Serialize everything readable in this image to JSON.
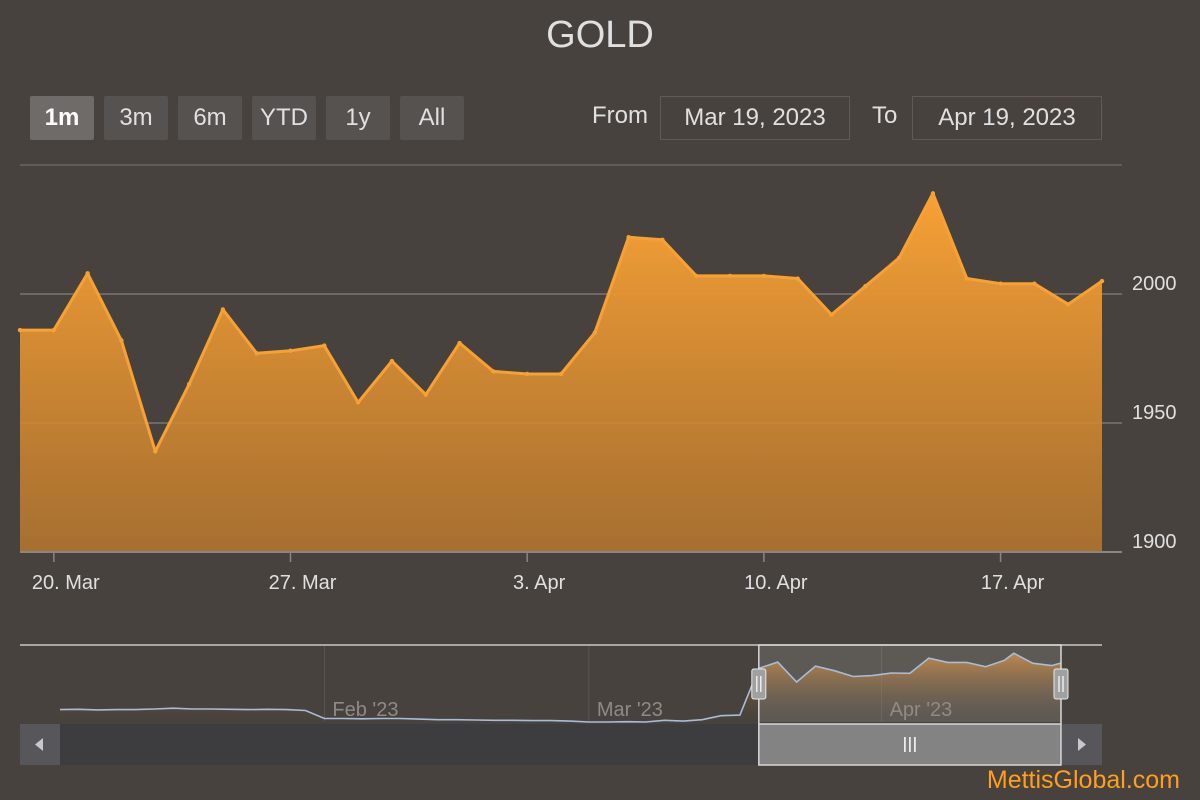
{
  "title": "GOLD",
  "range_selector": {
    "buttons": [
      "1m",
      "3m",
      "6m",
      "YTD",
      "1y",
      "All"
    ],
    "selected": "1m",
    "from_label": "From",
    "from_value": "Mar 19, 2023",
    "to_label": "To",
    "to_value": "Apr 19, 2023"
  },
  "watermark": "MettisGlobal.com",
  "colors": {
    "background": "#47423d",
    "series": "#f7a135",
    "navigator_line": "#a8bcd8",
    "grid": "#7a7570"
  },
  "chart_data": {
    "type": "area",
    "series": [
      {
        "values": [
          [
            "2023-03-19",
            1986
          ],
          [
            "2023-03-20",
            1986
          ],
          [
            "2023-03-21",
            2008
          ],
          [
            "2023-03-22",
            1982
          ],
          [
            "2023-03-23",
            1939
          ],
          [
            "2023-03-24",
            1965
          ],
          [
            "2023-03-25",
            1994
          ],
          [
            "2023-03-26",
            1977
          ],
          [
            "2023-03-27",
            1978
          ],
          [
            "2023-03-28",
            1980
          ],
          [
            "2023-03-29",
            1958
          ],
          [
            "2023-03-30",
            1974
          ],
          [
            "2023-03-31",
            1961
          ],
          [
            "2023-04-01",
            1981
          ],
          [
            "2023-04-02",
            1970
          ],
          [
            "2023-04-03",
            1969
          ],
          [
            "2023-04-04",
            1969
          ],
          [
            "2023-04-05",
            1985
          ],
          [
            "2023-04-06",
            2022
          ],
          [
            "2023-04-07",
            2021
          ],
          [
            "2023-04-08",
            2007
          ],
          [
            "2023-04-09",
            2007
          ],
          [
            "2023-04-10",
            2007
          ],
          [
            "2023-04-11",
            2006
          ],
          [
            "2023-04-12",
            1992
          ],
          [
            "2023-04-13",
            2003
          ],
          [
            "2023-04-14",
            2014
          ],
          [
            "2023-04-15",
            2039
          ],
          [
            "2023-04-16",
            2006
          ],
          [
            "2023-04-17",
            2004
          ],
          [
            "2023-04-18",
            2004
          ],
          [
            "2023-04-19",
            1996
          ],
          [
            "2023-04-20",
            2005
          ]
        ]
      }
    ],
    "x_axis": {
      "ticks": [
        {
          "date": "2023-03-20",
          "label": "20. Mar"
        },
        {
          "date": "2023-03-27",
          "label": "27. Mar"
        },
        {
          "date": "2023-04-03",
          "label": "3. Apr"
        },
        {
          "date": "2023-04-10",
          "label": "10. Apr"
        },
        {
          "date": "2023-04-17",
          "label": "17. Apr"
        }
      ],
      "range": [
        "2023-03-19",
        "2023-04-20"
      ]
    },
    "y_axis": {
      "ticks": [
        1900,
        1950,
        2000
      ],
      "range": [
        1900,
        2050
      ],
      "side": "right"
    },
    "grid": true,
    "navigator": {
      "labels": [
        {
          "date": "2023-02-01",
          "label": "Feb '23"
        },
        {
          "date": "2023-03-01",
          "label": "Mar '23"
        },
        {
          "date": "2023-04-01",
          "label": "Apr '23"
        }
      ],
      "range": [
        "2023-01-04",
        "2023-04-20"
      ],
      "y_range": [
        1800,
        2050
      ],
      "selection": [
        "2023-03-19",
        "2023-04-20"
      ],
      "values": [
        [
          "2023-01-04",
          1843
        ],
        [
          "2023-01-06",
          1844
        ],
        [
          "2023-01-08",
          1842
        ],
        [
          "2023-01-10",
          1843
        ],
        [
          "2023-01-12",
          1843
        ],
        [
          "2023-01-14",
          1845
        ],
        [
          "2023-01-16",
          1848
        ],
        [
          "2023-01-18",
          1845
        ],
        [
          "2023-01-20",
          1845
        ],
        [
          "2023-01-22",
          1844
        ],
        [
          "2023-01-24",
          1843
        ],
        [
          "2023-01-26",
          1844
        ],
        [
          "2023-01-28",
          1843
        ],
        [
          "2023-01-30",
          1840
        ],
        [
          "2023-02-01",
          1812
        ],
        [
          "2023-02-03",
          1812
        ],
        [
          "2023-02-05",
          1811
        ],
        [
          "2023-02-07",
          1812
        ],
        [
          "2023-02-09",
          1812
        ],
        [
          "2023-02-11",
          1810
        ],
        [
          "2023-02-13",
          1808
        ],
        [
          "2023-02-15",
          1808
        ],
        [
          "2023-02-17",
          1807
        ],
        [
          "2023-02-19",
          1806
        ],
        [
          "2023-02-21",
          1806
        ],
        [
          "2023-02-23",
          1805
        ],
        [
          "2023-02-25",
          1805
        ],
        [
          "2023-02-27",
          1803
        ],
        [
          "2023-03-01",
          1800
        ],
        [
          "2023-03-03",
          1800
        ],
        [
          "2023-03-05",
          1801
        ],
        [
          "2023-03-07",
          1800
        ],
        [
          "2023-03-09",
          1806
        ],
        [
          "2023-03-11",
          1803
        ],
        [
          "2023-03-13",
          1808
        ],
        [
          "2023-03-15",
          1822
        ],
        [
          "2023-03-17",
          1824
        ],
        [
          "2023-03-19",
          1986
        ],
        [
          "2023-03-21",
          2008
        ],
        [
          "2023-03-23",
          1939
        ],
        [
          "2023-03-25",
          1994
        ],
        [
          "2023-03-27",
          1978
        ],
        [
          "2023-03-29",
          1958
        ],
        [
          "2023-03-31",
          1961
        ],
        [
          "2023-04-02",
          1970
        ],
        [
          "2023-04-04",
          1969
        ],
        [
          "2023-04-06",
          2022
        ],
        [
          "2023-04-08",
          2007
        ],
        [
          "2023-04-10",
          2007
        ],
        [
          "2023-04-12",
          1992
        ],
        [
          "2023-04-14",
          2014
        ],
        [
          "2023-04-15",
          2039
        ],
        [
          "2023-04-17",
          2004
        ],
        [
          "2023-04-19",
          1996
        ],
        [
          "2023-04-20",
          2005
        ]
      ]
    }
  }
}
